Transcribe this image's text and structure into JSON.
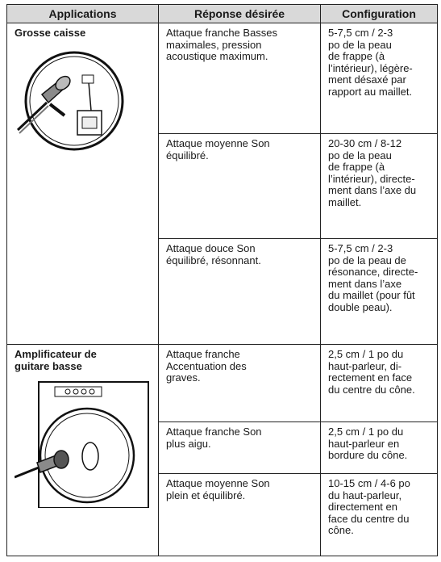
{
  "table": {
    "header": [
      "Applications",
      "Réponse désirée",
      "Configuration"
    ],
    "groups": [
      {
        "application": [
          "Grosse caisse"
        ],
        "rows": [
          {
            "response": [
              "Attaque franche Basses",
              "maximales, pression",
              "acoustique maximum."
            ],
            "configuration": [
              "5-7,5 cm / 2-3",
              "po de la peau",
              "de frappe (à",
              "l’intérieur), légère-",
              "ment désaxé par",
              "rapport au maillet."
            ]
          },
          {
            "response": [
              "Attaque moyenne Son",
              "équilibré."
            ],
            "configuration": [
              "20-30 cm / 8-12",
              "po de la peau",
              "de frappe (à",
              "l’intérieur), directe-",
              "ment dans l’axe du",
              "maillet."
            ]
          },
          {
            "response": [
              "Attaque douce Son",
              "équilibré, résonnant."
            ],
            "configuration": [
              "5-7,5 cm / 2-3",
              "po de la peau de",
              "résonance, directe-",
              "ment dans l’axe",
              "du maillet (pour fût",
              "double peau)."
            ]
          }
        ]
      },
      {
        "application": [
          "Amplificateur de",
          "guitare basse"
        ],
        "rows": [
          {
            "response": [
              "Attaque franche",
              "Accentuation des",
              "graves."
            ],
            "configuration": [
              "2,5 cm / 1 po du",
              "haut-parleur, di-",
              "rectement en face",
              "du centre du cône."
            ]
          },
          {
            "response": [
              "Attaque franche Son",
              "plus aigu."
            ],
            "configuration": [
              "2,5 cm / 1 po du",
              "haut-parleur en",
              "bordure du cône."
            ]
          },
          {
            "response": [
              "Attaque moyenne Son",
              "plein et équilibré."
            ],
            "configuration": [
              "10-15 cm / 4-6 po",
              "du haut-parleur,",
              "directement en",
              "face du centre du",
              "cône."
            ]
          }
        ]
      }
    ]
  }
}
